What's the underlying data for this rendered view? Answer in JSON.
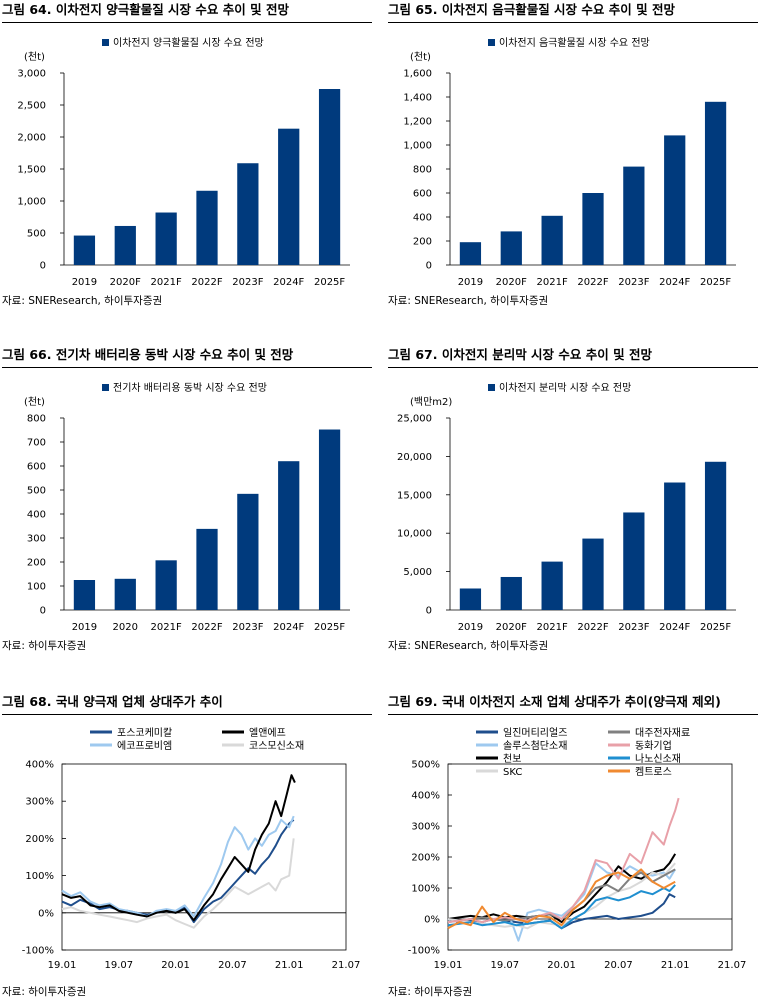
{
  "charts": [
    {
      "id": "fig64",
      "title": "그림 64. 이차전지 양극활물질 시장 수요 추이 및 전망",
      "source": "자료: SNEResearch, 하이투자증권",
      "chart_data": {
        "type": "bar",
        "legend": "이차전지 양극활물질 시장 수요 전망",
        "unit": "(천t)",
        "categories": [
          "2019",
          "2020F",
          "2021F",
          "2022F",
          "2023F",
          "2024F",
          "2025F"
        ],
        "values": [
          460,
          610,
          820,
          1160,
          1590,
          2130,
          2750
        ],
        "ylim": [
          0,
          3000
        ],
        "ytick_values": [
          0,
          500,
          1000,
          1500,
          2000,
          2500,
          3000
        ],
        "ytick_labels": [
          "0",
          "500",
          "1,000",
          "1,500",
          "2,000",
          "2,500",
          "3,000"
        ],
        "color": "#003a7d"
      }
    },
    {
      "id": "fig65",
      "title": "그림 65. 이차전지 음극활물질 시장 수요 추이 및 전망",
      "source": "자료: SNEResearch, 하이투자증권",
      "chart_data": {
        "type": "bar",
        "legend": "이차전지 음극활물질 시장 수요 전망",
        "unit": "(천t)",
        "categories": [
          "2019",
          "2020F",
          "2021F",
          "2022F",
          "2023F",
          "2024F",
          "2025F"
        ],
        "values": [
          190,
          280,
          410,
          600,
          820,
          1080,
          1360
        ],
        "ylim": [
          0,
          1600
        ],
        "ytick_values": [
          0,
          200,
          400,
          600,
          800,
          1000,
          1200,
          1400,
          1600
        ],
        "ytick_labels": [
          "0",
          "200",
          "400",
          "600",
          "800",
          "1,000",
          "1,200",
          "1,400",
          "1,600"
        ],
        "color": "#003a7d"
      }
    },
    {
      "id": "fig66",
      "title": "그림 66. 전기차 배터리용 동박 시장 수요 추이 및 전망",
      "source": "자료: 하이투자증권",
      "chart_data": {
        "type": "bar",
        "legend": "전기차 배터리용 동박 시장 수요 전망",
        "unit": "(천t)",
        "categories": [
          "2019",
          "2020",
          "2021F",
          "2022F",
          "2023F",
          "2024F",
          "2025F"
        ],
        "values": [
          125,
          130,
          207,
          338,
          484,
          620,
          752
        ],
        "ylim": [
          0,
          800
        ],
        "ytick_values": [
          0,
          100,
          200,
          300,
          400,
          500,
          600,
          700,
          800
        ],
        "ytick_labels": [
          "0",
          "100",
          "200",
          "300",
          "400",
          "500",
          "600",
          "700",
          "800"
        ],
        "color": "#003a7d"
      }
    },
    {
      "id": "fig67",
      "title": "그림 67. 이차전지 분리막 시장 수요 추이 및 전망",
      "source": "자료: SNEResearch, 하이투자증권",
      "chart_data": {
        "type": "bar",
        "legend": "이차전지 분리막 시장 수요 전망",
        "unit": "(백만m2)",
        "categories": [
          "2019",
          "2020F",
          "2021F",
          "2022F",
          "2023F",
          "2024F",
          "2025F"
        ],
        "values": [
          2800,
          4300,
          6300,
          9300,
          12700,
          16600,
          19300
        ],
        "ylim": [
          0,
          25000
        ],
        "ytick_values": [
          0,
          5000,
          10000,
          15000,
          20000,
          25000
        ],
        "ytick_labels": [
          "0",
          "5,000",
          "10,000",
          "15,000",
          "20,000",
          "25,000"
        ],
        "color": "#003a7d"
      }
    },
    {
      "id": "fig68",
      "title": "그림 68. 국내 양극재 업체 상대주가 추이",
      "source": "자료: 하이투자증권",
      "chart_data": {
        "type": "line",
        "xlim": [
          19.01,
          21.07
        ],
        "xtick_labels": [
          "19.01",
          "19.07",
          "20.01",
          "20.07",
          "21.01",
          "21.07"
        ],
        "ylim": [
          -100,
          400
        ],
        "ytick_values": [
          -100,
          0,
          100,
          200,
          300,
          400
        ],
        "ytick_labels": [
          "-100%",
          "0%",
          "100%",
          "200%",
          "300%",
          "400%"
        ],
        "series": [
          {
            "name": "포스코케미칼",
            "color": "#1f4e8c",
            "x": [
              0,
              0.08,
              0.16,
              0.25,
              0.33,
              0.42,
              0.5,
              0.58,
              0.66,
              0.75,
              0.83,
              0.92,
              1.0,
              1.08,
              1.16,
              1.25,
              1.33,
              1.4,
              1.46,
              1.52,
              1.58,
              1.64,
              1.7,
              1.76,
              1.82,
              1.88,
              1.93,
              2.0,
              2.04
            ],
            "y": [
              30,
              20,
              35,
              25,
              10,
              15,
              8,
              5,
              0,
              -5,
              0,
              5,
              0,
              15,
              -25,
              10,
              30,
              40,
              60,
              80,
              100,
              120,
              105,
              130,
              150,
              180,
              210,
              240,
              250
            ]
          },
          {
            "name": "에코프로비엠",
            "color": "#9ec9ef",
            "x": [
              0,
              0.08,
              0.16,
              0.25,
              0.33,
              0.42,
              0.5,
              0.58,
              0.66,
              0.75,
              0.83,
              0.92,
              1.0,
              1.08,
              1.16,
              1.25,
              1.33,
              1.4,
              1.46,
              1.52,
              1.58,
              1.64,
              1.7,
              1.76,
              1.82,
              1.88,
              1.93,
              2.0,
              2.04
            ],
            "y": [
              60,
              45,
              55,
              30,
              20,
              25,
              10,
              5,
              0,
              -10,
              5,
              10,
              5,
              20,
              -10,
              40,
              80,
              130,
              190,
              230,
              210,
              170,
              200,
              180,
              210,
              220,
              250,
              230,
              260
            ]
          },
          {
            "name": "엘앤에프",
            "color": "#000000",
            "x": [
              0,
              0.08,
              0.16,
              0.25,
              0.33,
              0.42,
              0.5,
              0.58,
              0.66,
              0.75,
              0.83,
              0.92,
              1.0,
              1.08,
              1.16,
              1.25,
              1.33,
              1.4,
              1.46,
              1.52,
              1.58,
              1.64,
              1.7,
              1.76,
              1.82,
              1.88,
              1.93,
              1.98,
              2.02,
              2.05
            ],
            "y": [
              50,
              40,
              45,
              20,
              15,
              20,
              5,
              0,
              -5,
              -10,
              0,
              5,
              0,
              10,
              -20,
              20,
              50,
              90,
              120,
              150,
              130,
              110,
              170,
              210,
              240,
              300,
              260,
              320,
              370,
              350
            ]
          },
          {
            "name": "코스모신소재",
            "color": "#d9d9d9",
            "x": [
              0,
              0.08,
              0.16,
              0.25,
              0.33,
              0.42,
              0.5,
              0.58,
              0.66,
              0.75,
              0.83,
              0.92,
              1.0,
              1.08,
              1.16,
              1.25,
              1.33,
              1.4,
              1.46,
              1.52,
              1.58,
              1.64,
              1.7,
              1.76,
              1.82,
              1.88,
              1.93,
              2.0,
              2.04
            ],
            "y": [
              10,
              15,
              5,
              0,
              -5,
              -10,
              -15,
              -20,
              -25,
              -15,
              -10,
              -5,
              -20,
              -30,
              -40,
              -10,
              10,
              30,
              50,
              70,
              60,
              50,
              60,
              70,
              80,
              60,
              90,
              100,
              200
            ]
          }
        ]
      }
    },
    {
      "id": "fig69",
      "title": "그림 69. 국내 이차전지 소재 업체 상대주가 추이(양극재 제외)",
      "source": "자료: 하이투자증권",
      "chart_data": {
        "type": "line",
        "xlim": [
          19.01,
          21.07
        ],
        "xtick_labels": [
          "19.01",
          "19.07",
          "20.01",
          "20.07",
          "21.01",
          "21.07"
        ],
        "ylim": [
          -100,
          500
        ],
        "ytick_values": [
          -100,
          0,
          100,
          200,
          300,
          400,
          500
        ],
        "ytick_labels": [
          "-100%",
          "0%",
          "100%",
          "200%",
          "300%",
          "400%",
          "500%"
        ],
        "series": [
          {
            "name": "일진머티리얼즈",
            "color": "#1f4e8c",
            "x": [
              0,
              0.1,
              0.2,
              0.3,
              0.4,
              0.5,
              0.6,
              0.7,
              0.8,
              0.9,
              1.0,
              1.1,
              1.2,
              1.3,
              1.4,
              1.5,
              1.6,
              1.7,
              1.8,
              1.9,
              1.95,
              2.0
            ],
            "y": [
              0,
              -10,
              -5,
              -10,
              0,
              -5,
              -10,
              -15,
              -10,
              -5,
              -30,
              -10,
              0,
              5,
              10,
              0,
              5,
              10,
              20,
              50,
              80,
              70
            ]
          },
          {
            "name": "솔루스첨단소재",
            "color": "#9ec9ef",
            "x": [
              0.55,
              0.62,
              0.7,
              0.8,
              0.9,
              1.0,
              1.1,
              1.2,
              1.3,
              1.4,
              1.5,
              1.6,
              1.7,
              1.8,
              1.9,
              1.95,
              2.0
            ],
            "y": [
              0,
              -70,
              20,
              30,
              20,
              10,
              40,
              80,
              180,
              150,
              140,
              170,
              150,
              140,
              150,
              130,
              160
            ]
          },
          {
            "name": "천보",
            "color": "#000000",
            "x": [
              0,
              0.1,
              0.2,
              0.3,
              0.4,
              0.5,
              0.6,
              0.7,
              0.8,
              0.9,
              1.0,
              1.1,
              1.2,
              1.3,
              1.4,
              1.5,
              1.6,
              1.7,
              1.8,
              1.9,
              1.95,
              2.0
            ],
            "y": [
              0,
              5,
              10,
              5,
              15,
              5,
              10,
              5,
              10,
              15,
              -10,
              20,
              40,
              80,
              120,
              170,
              140,
              130,
              150,
              160,
              180,
              210
            ]
          },
          {
            "name": "SKC",
            "color": "#d9d9d9",
            "x": [
              0,
              0.1,
              0.2,
              0.3,
              0.4,
              0.5,
              0.6,
              0.7,
              0.8,
              0.9,
              1.0,
              1.1,
              1.2,
              1.3,
              1.4,
              1.5,
              1.6,
              1.7,
              1.8,
              1.9,
              1.95,
              2.0
            ],
            "y": [
              0,
              -5,
              -10,
              -15,
              -20,
              -25,
              -20,
              -30,
              -10,
              -15,
              -20,
              0,
              20,
              40,
              70,
              90,
              100,
              120,
              150,
              140,
              160,
              180
            ]
          },
          {
            "name": "대주전자재료",
            "color": "#808080",
            "x": [
              0,
              0.1,
              0.2,
              0.3,
              0.4,
              0.5,
              0.6,
              0.7,
              0.8,
              0.9,
              1.0,
              1.1,
              1.2,
              1.3,
              1.4,
              1.5,
              1.6,
              1.7,
              1.8,
              1.9,
              1.95,
              2.0
            ],
            "y": [
              -10,
              -5,
              0,
              5,
              0,
              -5,
              0,
              5,
              10,
              15,
              0,
              30,
              60,
              100,
              110,
              90,
              130,
              150,
              120,
              140,
              150,
              160
            ]
          },
          {
            "name": "동화기업",
            "color": "#e8a0a8",
            "x": [
              0,
              0.1,
              0.2,
              0.3,
              0.4,
              0.5,
              0.6,
              0.7,
              0.8,
              0.9,
              1.0,
              1.1,
              1.2,
              1.3,
              1.4,
              1.5,
              1.6,
              1.7,
              1.8,
              1.9,
              1.95,
              2.0,
              2.03
            ],
            "y": [
              -10,
              -5,
              0,
              -10,
              0,
              5,
              0,
              -5,
              10,
              20,
              0,
              40,
              90,
              190,
              180,
              130,
              210,
              180,
              280,
              240,
              300,
              350,
              390
            ]
          },
          {
            "name": "나노신소재",
            "color": "#1f8fd0",
            "x": [
              0,
              0.1,
              0.2,
              0.3,
              0.4,
              0.5,
              0.6,
              0.7,
              0.8,
              0.9,
              1.0,
              1.1,
              1.2,
              1.3,
              1.4,
              1.5,
              1.6,
              1.7,
              1.8,
              1.9,
              1.95,
              2.0
            ],
            "y": [
              -20,
              -15,
              -10,
              -20,
              -15,
              -10,
              -20,
              -15,
              -10,
              -5,
              -30,
              0,
              20,
              60,
              70,
              60,
              70,
              90,
              80,
              100,
              90,
              110
            ]
          },
          {
            "name": "켐트로스",
            "color": "#f08a30",
            "x": [
              0,
              0.1,
              0.2,
              0.3,
              0.4,
              0.5,
              0.6,
              0.7,
              0.8,
              0.9,
              1.0,
              1.1,
              1.2,
              1.3,
              1.4,
              1.5,
              1.6,
              1.7,
              1.8,
              1.9,
              1.95,
              2.0
            ],
            "y": [
              -30,
              -10,
              -20,
              40,
              -10,
              20,
              0,
              -10,
              10,
              5,
              -20,
              30,
              60,
              120,
              140,
              150,
              130,
              160,
              120,
              100,
              110,
              120
            ]
          }
        ]
      }
    }
  ]
}
